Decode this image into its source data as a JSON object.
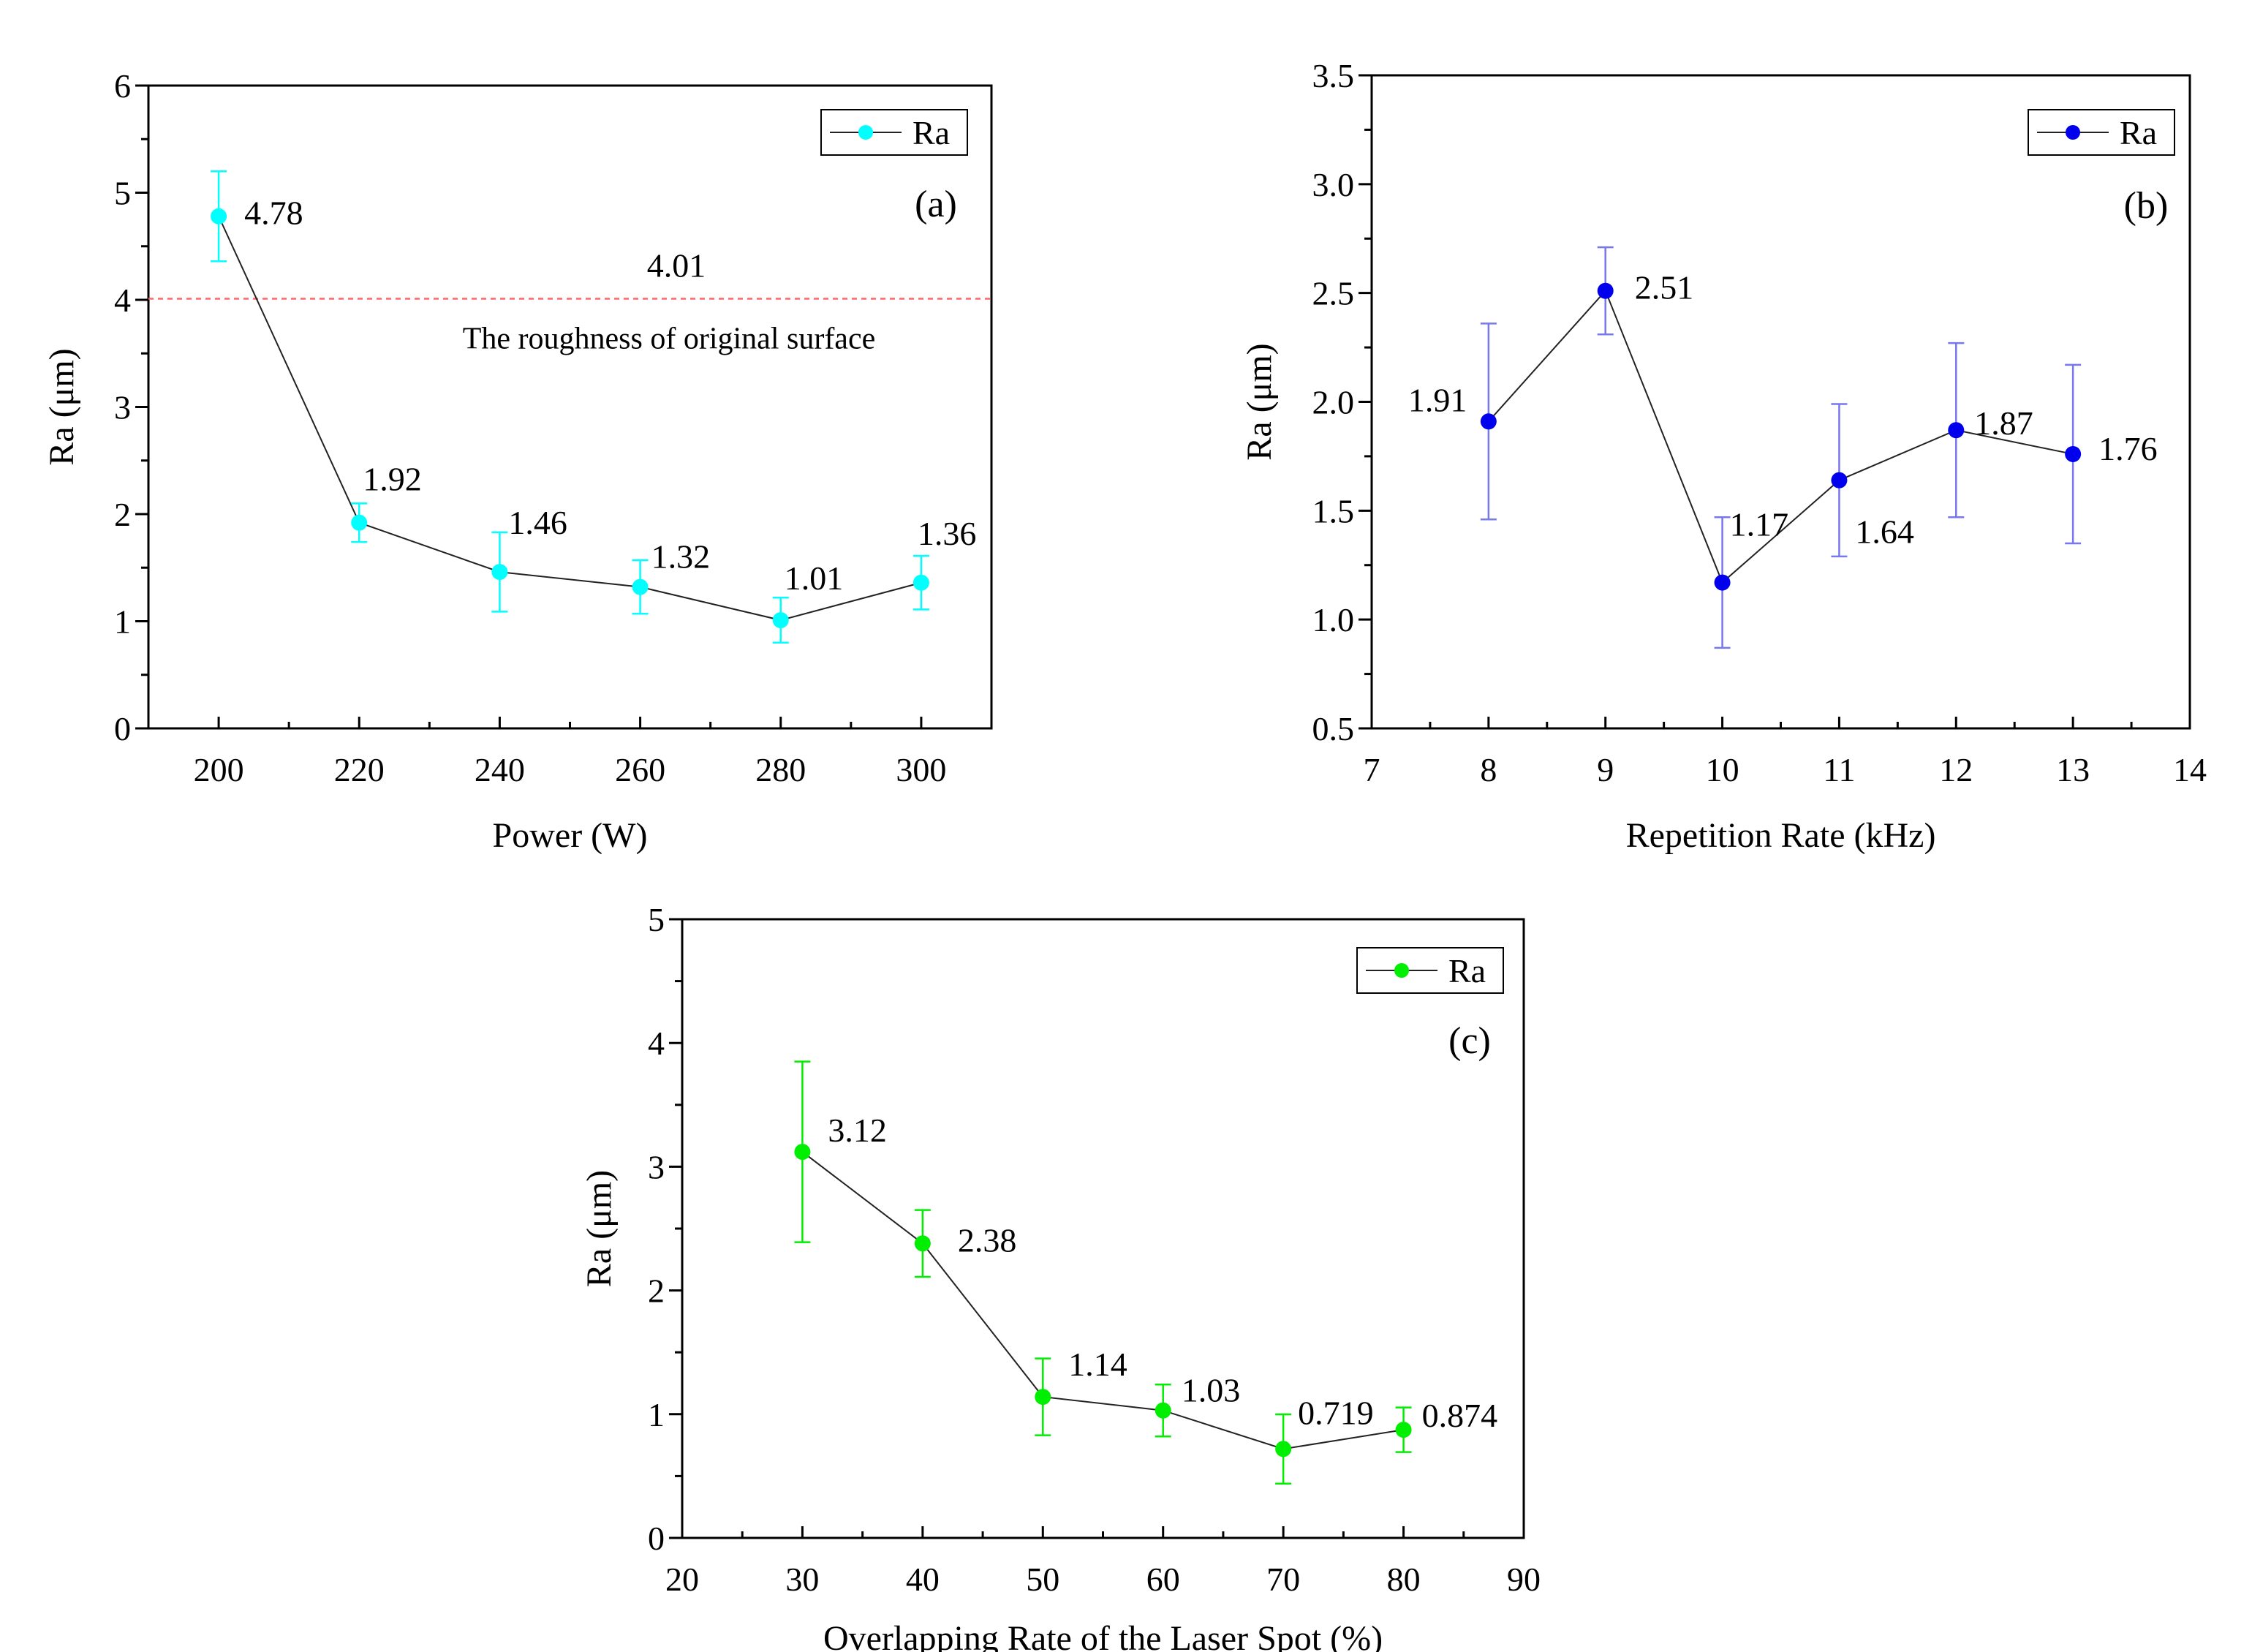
{
  "chart_data": [
    {
      "id": "a",
      "type": "line",
      "panel_label": "(a)",
      "xlabel": "Power (W)",
      "ylabel": "Ra (μm)",
      "xlim": [
        190,
        310
      ],
      "ylim": [
        0,
        6
      ],
      "xticks": [
        200,
        220,
        240,
        260,
        280,
        300
      ],
      "xtick_labels": [
        "200",
        "220",
        "240",
        "260",
        "280",
        "300"
      ],
      "yticks": [
        0,
        1,
        2,
        3,
        4,
        5,
        6
      ],
      "ytick_labels": [
        "0",
        "1",
        "2",
        "3",
        "4",
        "5",
        "6"
      ],
      "series": [
        {
          "name": "Ra",
          "color": "#00ffff",
          "x": [
            200,
            220,
            240,
            260,
            280,
            300
          ],
          "y": [
            4.78,
            1.92,
            1.46,
            1.32,
            1.01,
            1.36
          ],
          "err": [
            0.42,
            0.18,
            0.37,
            0.25,
            0.21,
            0.25
          ],
          "labels": [
            "4.78",
            "1.92",
            "1.46",
            "1.32",
            "1.01",
            "1.36"
          ]
        }
      ],
      "legend": "top-right",
      "reference_line": {
        "y": 4.01,
        "value_label": "4.01",
        "text": "The roughness of original surface",
        "color": "#ff6666"
      }
    },
    {
      "id": "b",
      "type": "line",
      "panel_label": "(b)",
      "xlabel": "Repetition Rate (kHz)",
      "ylabel": "Ra (μm)",
      "xlim": [
        7,
        14
      ],
      "ylim": [
        0.5,
        3.5
      ],
      "xticks": [
        7,
        8,
        9,
        10,
        11,
        12,
        13,
        14
      ],
      "xtick_labels": [
        "7",
        "8",
        "9",
        "10",
        "11",
        "12",
        "13",
        "14"
      ],
      "yticks": [
        0.5,
        1.0,
        1.5,
        2.0,
        2.5,
        3.0,
        3.5
      ],
      "ytick_labels": [
        "0.5",
        "1.0",
        "1.5",
        "2.0",
        "2.5",
        "3.0",
        "3.5"
      ],
      "series": [
        {
          "name": "Ra",
          "color": "#0000ee",
          "errcolor": "#7777ee",
          "x": [
            8,
            9,
            10,
            11,
            12,
            13
          ],
          "y": [
            1.91,
            2.51,
            1.17,
            1.64,
            1.87,
            1.76
          ],
          "err": [
            0.45,
            0.2,
            0.3,
            0.35,
            0.4,
            0.41
          ],
          "labels": [
            "1.91",
            "2.51",
            "1.17",
            "1.64",
            "1.87",
            "1.76"
          ]
        }
      ],
      "legend": "top-right"
    },
    {
      "id": "c",
      "type": "line",
      "panel_label": "(c)",
      "xlabel": "Overlapping Rate of the Laser Spot (%)",
      "ylabel": "Ra (μm)",
      "xlim": [
        20,
        90
      ],
      "ylim": [
        0,
        5
      ],
      "xticks": [
        20,
        30,
        40,
        50,
        60,
        70,
        80,
        90
      ],
      "xtick_labels": [
        "20",
        "30",
        "40",
        "50",
        "60",
        "70",
        "80",
        "90"
      ],
      "yticks": [
        0,
        1,
        2,
        3,
        4,
        5
      ],
      "ytick_labels": [
        "0",
        "1",
        "2",
        "3",
        "4",
        "5"
      ],
      "series": [
        {
          "name": "Ra",
          "color": "#00ee00",
          "x": [
            30,
            40,
            50,
            60,
            70,
            80
          ],
          "y": [
            3.12,
            2.38,
            1.14,
            1.03,
            0.719,
            0.874
          ],
          "err": [
            0.73,
            0.27,
            0.31,
            0.21,
            0.28,
            0.18
          ],
          "labels": [
            "3.12",
            "2.38",
            "1.14",
            "1.03",
            "0.719",
            "0.874"
          ]
        }
      ],
      "legend": "top-right"
    }
  ]
}
